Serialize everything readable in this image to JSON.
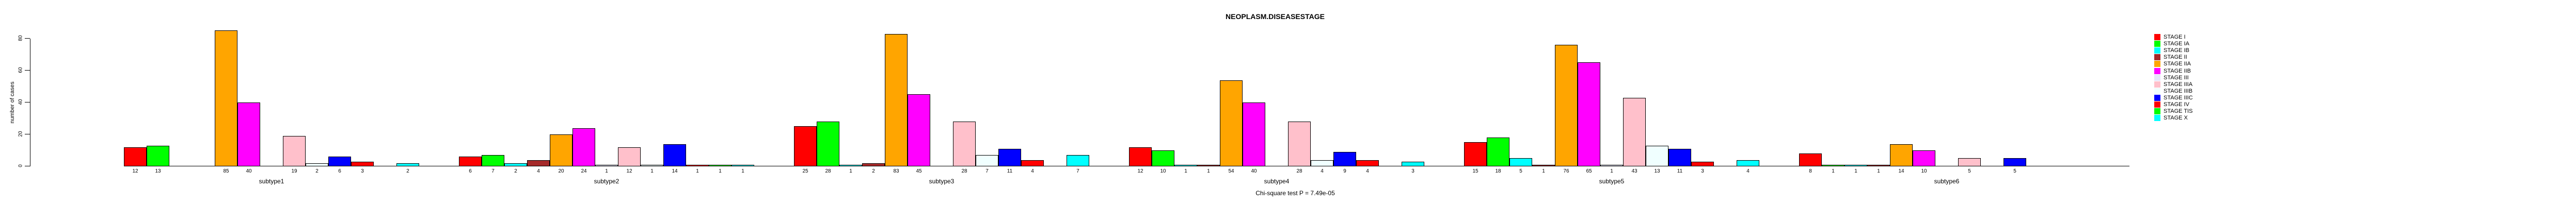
{
  "title": "NEOPLASM.DISEASESTAGE",
  "x_axis_title": "Chi-square test P = 7.49e-05",
  "y_axis": {
    "label": "number of cases",
    "ticks": [
      0,
      20,
      40,
      60,
      80
    ]
  },
  "legend": {
    "position": "right",
    "items": [
      {
        "label": "STAGE I",
        "color": "#FF0000"
      },
      {
        "label": "STAGE IA",
        "color": "#00FF00"
      },
      {
        "label": "STAGE IB",
        "color": "#00FFFF"
      },
      {
        "label": "STAGE II",
        "color": "#A52A2A"
      },
      {
        "label": "STAGE IIA",
        "color": "#FFA500"
      },
      {
        "label": "STAGE IIB",
        "color": "#FF00FF"
      },
      {
        "label": "STAGE III",
        "color": "#E6E6FA"
      },
      {
        "label": "STAGE IIIA",
        "color": "#FFC0CB"
      },
      {
        "label": "STAGE IIIB",
        "color": "#F0FFFF"
      },
      {
        "label": "STAGE IIIC",
        "color": "#0000FF"
      },
      {
        "label": "STAGE IV",
        "color": "#FF0000"
      },
      {
        "label": "STAGE TIS",
        "color": "#00FF00"
      },
      {
        "label": "STAGE X",
        "color": "#00FFFF"
      }
    ]
  },
  "chart_data": {
    "type": "bar",
    "title": "NEOPLASM.DISEASESTAGE",
    "xlabel": "Chi-square test P = 7.49e-05",
    "ylabel": "number of cases",
    "ylim": [
      0,
      80
    ],
    "grid": false,
    "legend_position": "right",
    "value_labels": "shown below each nonzero bar",
    "categories": [
      "STAGE I",
      "STAGE IA",
      "STAGE IB",
      "STAGE II",
      "STAGE IIA",
      "STAGE IIB",
      "STAGE III",
      "STAGE IIIA",
      "STAGE IIIB",
      "STAGE IIIC",
      "STAGE IV",
      "STAGE TIS",
      "STAGE X"
    ],
    "category_colors": [
      "#FF0000",
      "#00FF00",
      "#00FFFF",
      "#A52A2A",
      "#FFA500",
      "#FF00FF",
      "#E6E6FA",
      "#FFC0CB",
      "#F0FFFF",
      "#0000FF",
      "#FF0000",
      "#00FF00",
      "#00FFFF"
    ],
    "series": [
      {
        "name": "subtype1",
        "values": [
          12,
          13,
          0,
          0,
          85,
          40,
          0,
          19,
          2,
          6,
          3,
          0,
          2
        ]
      },
      {
        "name": "subtype2",
        "values": [
          6,
          7,
          2,
          4,
          20,
          24,
          1,
          12,
          1,
          14,
          1,
          1,
          1
        ]
      },
      {
        "name": "subtype3",
        "values": [
          25,
          28,
          1,
          2,
          83,
          45,
          0,
          28,
          7,
          11,
          4,
          0,
          7
        ]
      },
      {
        "name": "subtype4",
        "values": [
          12,
          10,
          1,
          1,
          54,
          40,
          0,
          28,
          4,
          9,
          4,
          0,
          3
        ]
      },
      {
        "name": "subtype5",
        "values": [
          15,
          18,
          5,
          1,
          76,
          65,
          1,
          43,
          13,
          11,
          3,
          0,
          4
        ]
      },
      {
        "name": "subtype6",
        "values": [
          8,
          1,
          1,
          1,
          14,
          10,
          0,
          5,
          0,
          5,
          0,
          0,
          0
        ]
      }
    ]
  }
}
